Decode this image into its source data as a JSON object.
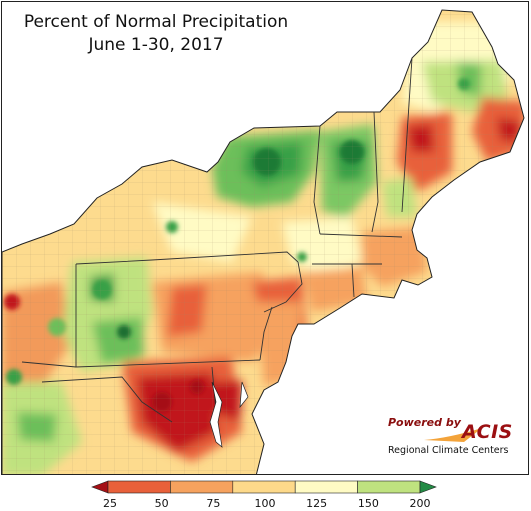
{
  "title_line1": "Percent of Normal Precipitation",
  "title_line2": "June 1-30, 2017",
  "credit": {
    "powered_by": "Powered by",
    "brand": "ACIS",
    "org": "Regional Climate Centers"
  },
  "legend": {
    "ticks": [
      "25",
      "50",
      "75",
      "100",
      "125",
      "150",
      "200"
    ],
    "colors": [
      "#c1141c",
      "#e8603a",
      "#f6a25e",
      "#fdd98a",
      "#fffbc4",
      "#bfe27f",
      "#37a047"
    ],
    "arrow_low": "#a50f15",
    "arrow_high": "#238b45"
  },
  "colors": {
    "lake": "#ffffff",
    "border": "#222222",
    "county_line": "#a08a6a"
  }
}
